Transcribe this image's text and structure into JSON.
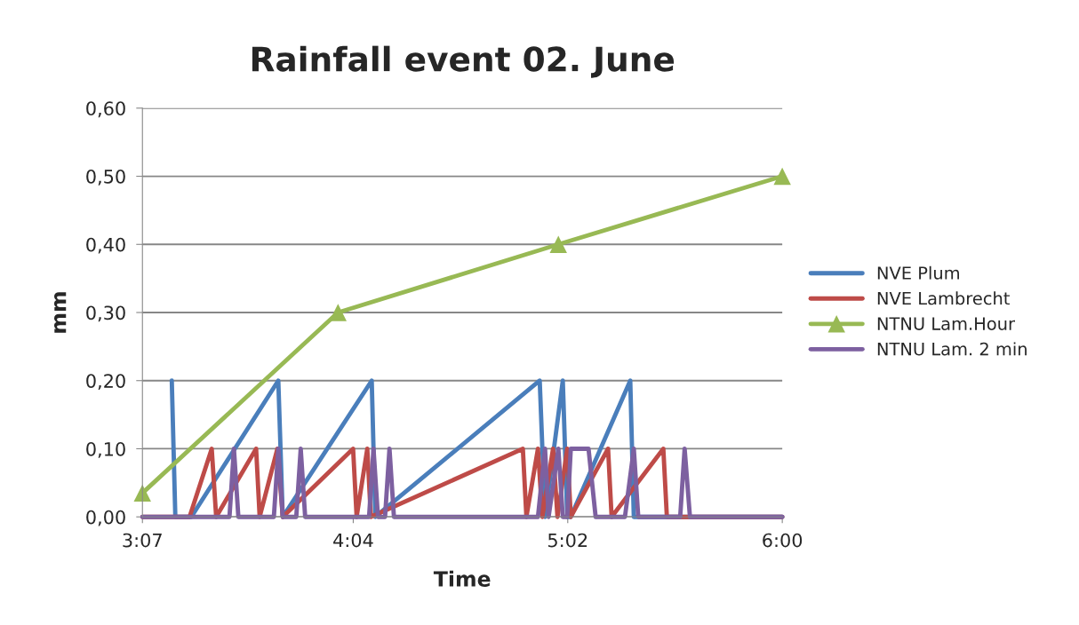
{
  "chart_data": {
    "type": "line",
    "title": "Rainfall event 02. June",
    "xlabel": "Time",
    "ylabel": "mm",
    "xlim": [
      3.1167,
      6.0
    ],
    "xticks": [
      {
        "value": 3.1167,
        "label": "3:07"
      },
      {
        "value": 4.0667,
        "label": "4:04"
      },
      {
        "value": 5.0333,
        "label": "5:02"
      },
      {
        "value": 6.0,
        "label": "6:00"
      }
    ],
    "ylim": [
      0,
      0.6
    ],
    "yticks": [
      {
        "value": 0,
        "label": "0,00"
      },
      {
        "value": 0.1,
        "label": "0,10"
      },
      {
        "value": 0.2,
        "label": "0,20"
      },
      {
        "value": 0.3,
        "label": "0,30"
      },
      {
        "value": 0.4,
        "label": "0,40"
      },
      {
        "value": 0.5,
        "label": "0,50"
      },
      {
        "value": 0.6,
        "label": "0,60"
      }
    ],
    "grid": "y",
    "legend": "right",
    "series": [
      {
        "name": "NVE Plum",
        "color": "#4a7ebb",
        "marker": "none",
        "x": [
          3.249,
          3.265,
          3.337,
          3.729,
          3.749,
          4.15,
          4.166,
          4.907,
          4.931,
          5.011,
          5.031,
          5.047,
          5.315,
          5.331,
          6.0
        ],
        "values": [
          0.2,
          0,
          0,
          0.2,
          0,
          0.2,
          0,
          0.2,
          0,
          0.2,
          0,
          0,
          0.2,
          0,
          0
        ]
      },
      {
        "name": "NVE Lambrecht",
        "color": "#be4b48",
        "marker": "none",
        "x": [
          3.1167,
          3.329,
          3.429,
          3.449,
          3.629,
          3.645,
          3.725,
          3.749,
          4.066,
          4.082,
          4.13,
          4.146,
          4.831,
          4.847,
          4.899,
          4.919,
          4.967,
          4.987,
          5.031,
          5.047,
          5.215,
          5.231,
          5.464,
          5.48,
          6.0
        ],
        "values": [
          0,
          0,
          0.1,
          0,
          0.1,
          0,
          0.1,
          0,
          0.1,
          0,
          0.1,
          0,
          0.1,
          0,
          0.1,
          0,
          0.1,
          0,
          0.1,
          0,
          0.1,
          0,
          0.1,
          0,
          0
        ]
      },
      {
        "name": "NTNU Lam.Hour",
        "color": "#98b954",
        "marker": "triangle",
        "x": [
          3.1167,
          3.998,
          4.991,
          6.0
        ],
        "values": [
          0.035,
          0.3,
          0.4,
          0.5
        ]
      },
      {
        "name": "NTNU Lam. 2 min",
        "color": "#7d60a0",
        "marker": "none",
        "x": [
          3.1167,
          3.509,
          3.529,
          3.549,
          3.709,
          3.729,
          3.749,
          3.81,
          3.83,
          3.85,
          4.138,
          4.158,
          4.178,
          4.21,
          4.23,
          4.25,
          4.899,
          4.931,
          4.947,
          4.991,
          5.011,
          5.031,
          5.047,
          5.127,
          5.159,
          5.291,
          5.331,
          5.351,
          5.54,
          5.56,
          5.584,
          6.0
        ],
        "values": [
          0,
          0,
          0.1,
          0,
          0,
          0.1,
          0,
          0,
          0.1,
          0,
          0,
          0.1,
          0,
          0,
          0.1,
          0,
          0,
          0.1,
          0,
          0.1,
          0,
          0,
          0.1,
          0.1,
          0,
          0,
          0.1,
          0,
          0,
          0.1,
          0,
          0
        ]
      }
    ]
  }
}
